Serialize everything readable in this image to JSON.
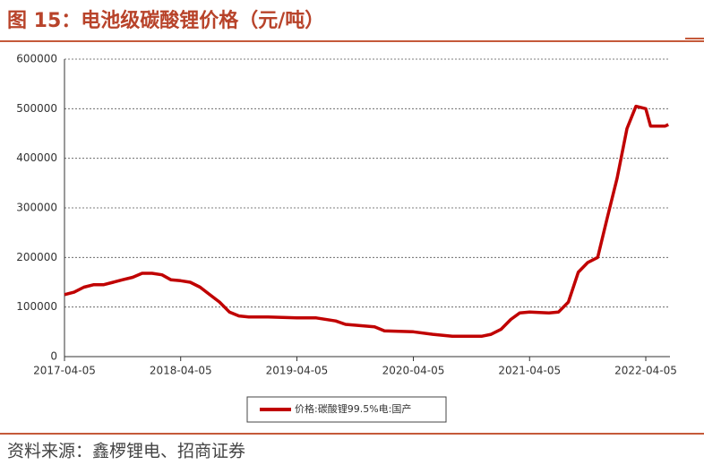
{
  "chart_data": {
    "type": "line",
    "title": "图 15：电池级碳酸锂价格（元/吨）",
    "source": "资料来源：鑫椤锂电、招商证券",
    "x": [
      "2017-04-05",
      "2017-05-05",
      "2017-06-05",
      "2017-07-05",
      "2017-08-05",
      "2017-09-05",
      "2017-10-05",
      "2017-11-05",
      "2017-12-05",
      "2018-01-05",
      "2018-02-05",
      "2018-03-05",
      "2018-04-05",
      "2018-05-05",
      "2018-06-05",
      "2018-07-05",
      "2018-08-05",
      "2018-09-05",
      "2018-10-05",
      "2018-11-05",
      "2019-01-05",
      "2019-04-05",
      "2019-06-05",
      "2019-08-05",
      "2019-09-05",
      "2019-12-05",
      "2020-01-05",
      "2020-04-05",
      "2020-06-05",
      "2020-08-05",
      "2020-11-05",
      "2020-12-05",
      "2021-01-05",
      "2021-02-05",
      "2021-03-05",
      "2021-04-05",
      "2021-06-05",
      "2021-07-05",
      "2021-08-05",
      "2021-09-05",
      "2021-10-05",
      "2021-11-05",
      "2021-12-05",
      "2022-01-05",
      "2022-02-05",
      "2022-03-05",
      "2022-04-05",
      "2022-04-20",
      "2022-06-05",
      "2022-06-15"
    ],
    "series": [
      {
        "name": "价格:碳酸锂99.5%电:国产",
        "color": "#c00000",
        "values": [
          125000,
          130000,
          140000,
          145000,
          145000,
          150000,
          155000,
          160000,
          168000,
          168000,
          165000,
          155000,
          153000,
          150000,
          140000,
          125000,
          110000,
          90000,
          82000,
          80000,
          80000,
          78000,
          78000,
          72000,
          65000,
          60000,
          52000,
          50000,
          45000,
          41000,
          41000,
          45000,
          55000,
          75000,
          88000,
          90000,
          88000,
          90000,
          110000,
          170000,
          190000,
          200000,
          280000,
          360000,
          460000,
          505000,
          500000,
          465000,
          465000,
          468000
        ]
      }
    ],
    "xlim": [
      "2017-04-05",
      "2022-06-20"
    ],
    "xticks": [
      "2017-04-05",
      "2018-04-05",
      "2019-04-05",
      "2020-04-05",
      "2021-04-05",
      "2022-04-05"
    ],
    "ylim": [
      0,
      600000
    ],
    "yticks": [
      0,
      100000,
      200000,
      300000,
      400000,
      500000,
      600000
    ],
    "grid": true
  }
}
